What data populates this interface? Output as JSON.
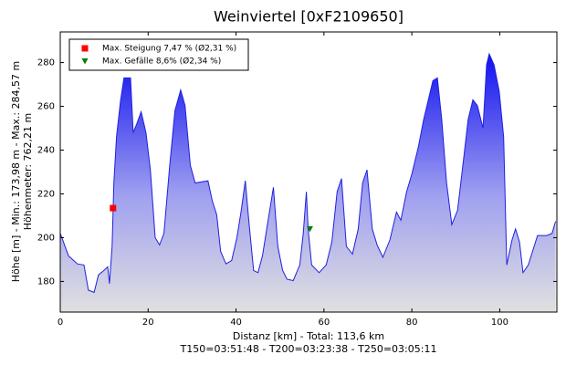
{
  "chart_data": {
    "type": "area",
    "title": "Weinviertel [0xF2109650]",
    "ylabel": [
      "Höhe [m] - Min.: 173,98 m - Max.: 284,57 m",
      "Höhenmeter: 762,21 m"
    ],
    "xlabel": [
      "Distanz [km] - Total: 113,6 km",
      "T150=03:51:48 - T200=03:23:38 - T250=03:05:11"
    ],
    "color": "#2020e0",
    "x": [
      0,
      1.9,
      3.9,
      5.4,
      6.4,
      7.7,
      8.7,
      9.7,
      10.8,
      11.2,
      11.8,
      12.2,
      12.8,
      13.7,
      14.5,
      16,
      16.6,
      17.4,
      18.4,
      19.5,
      20.5,
      21.6,
      22.6,
      23.6,
      24.9,
      26.1,
      27.4,
      28.4,
      29.6,
      30.7,
      33.6,
      34.6,
      35.6,
      36.5,
      37.7,
      39,
      40.2,
      41.2,
      42.1,
      42.9,
      44,
      45,
      46,
      47.3,
      48.5,
      49.5,
      50.6,
      51.6,
      53,
      54.5,
      55.3,
      56,
      56.4,
      57.2,
      58.9,
      60.5,
      61.8,
      63,
      64,
      65.1,
      66.5,
      67.8,
      68.8,
      69.8,
      71,
      72.1,
      73.4,
      75,
      76.5,
      77.5,
      78.8,
      80,
      81.5,
      82.7,
      83.7,
      84.8,
      85.8,
      86.8,
      87.9,
      89.1,
      90.4,
      91.6,
      92.8,
      93.9,
      94.9,
      96.2,
      97,
      97.6,
      98.7,
      99.9,
      100.9,
      101.6,
      102.8,
      103.6,
      104.5,
      105.3,
      106.5,
      108.6,
      110.7,
      111.9,
      112.7
    ],
    "values": [
      202,
      191.7,
      188,
      187.5,
      176,
      175,
      183,
      184.6,
      186.7,
      179,
      196,
      225,
      246,
      262.5,
      273,
      273,
      248,
      252,
      257.5,
      248,
      231,
      200,
      196.7,
      202,
      233,
      258,
      267.5,
      260.4,
      233,
      225,
      226,
      216.7,
      210.4,
      193.7,
      188,
      189.6,
      200,
      212.5,
      226,
      208,
      185,
      184,
      191.7,
      208,
      223,
      196,
      185,
      181,
      180.4,
      187.5,
      202,
      221,
      204,
      187.5,
      184,
      187.5,
      198,
      221,
      227,
      196,
      192.5,
      204,
      225,
      231,
      204,
      196.7,
      191,
      199,
      211.7,
      208,
      221,
      229,
      241.7,
      254,
      262.5,
      271.7,
      273,
      254,
      225,
      206,
      212.5,
      233,
      254,
      263,
      260.4,
      250,
      279,
      284,
      279,
      266.7,
      246,
      187.5,
      199,
      204,
      198,
      184,
      187.5,
      201,
      201,
      202,
      207.5
    ],
    "markers": [
      {
        "name": "Max. Steigung 7,47 % (Ø2,31 %)",
        "color": "#ff0000",
        "shape": "square",
        "x": 12,
        "y": 213.5
      },
      {
        "name": "Max. Gefälle 8,6% (Ø2,34 %)",
        "color": "#008000",
        "shape": "triangle",
        "x": 56.8,
        "y": 204
      }
    ],
    "legend": "upper left",
    "xlim": [
      0,
      113
    ],
    "ylim": [
      166,
      294
    ],
    "xticks": [
      0,
      20,
      40,
      60,
      80,
      100
    ],
    "yticks": [
      180,
      200,
      220,
      240,
      260,
      280
    ]
  }
}
